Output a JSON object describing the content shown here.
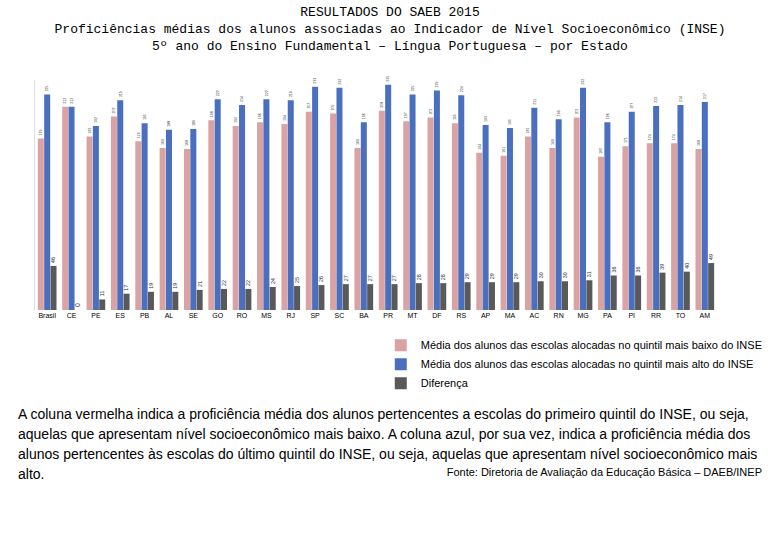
{
  "chart_data": {
    "type": "bar",
    "title": "RESULTADOS DO SAEB 2015\nProficiências médias dos alunos associadas ao Indicador de Nível Socioeconômico (INSE)\n5º ano do Ensino Fundamental – Língua Portuguesa – por Estado",
    "categories": [
      "Brasil",
      "CE",
      "PE",
      "ES",
      "PB",
      "AL",
      "SE",
      "GO",
      "RO",
      "MS",
      "RJ",
      "SP",
      "SC",
      "BA",
      "PR",
      "MT",
      "DF",
      "RS",
      "AP",
      "MA",
      "AC",
      "RN",
      "MG",
      "PA",
      "PI",
      "RR",
      "TO",
      "AM"
    ],
    "series": [
      {
        "name": "Média dos alunos das escolas alocadas no quintil mais baixo do INSE",
        "color": "#d9a3a3",
        "values": [
          179,
          212,
          181,
          202,
          176,
          169,
          168,
          198,
          192,
          196,
          194,
          207,
          205,
          169,
          208,
          197,
          201,
          195,
          164,
          161,
          181,
          169,
          201,
          160,
          171,
          174,
          174,
          168
        ]
      },
      {
        "name": "Média dos alunos das escolas alocadas no quintil mais alto do INSE",
        "color": "#4a6fbf",
        "values": [
          225,
          212,
          192,
          219,
          195,
          188,
          189,
          220,
          214,
          220,
          219,
          233,
          232,
          196,
          235,
          225,
          229,
          224,
          193,
          190,
          211,
          199,
          232,
          196,
          207,
          213,
          214,
          217
        ]
      },
      {
        "name": "Diferença",
        "color": "#595959",
        "values": [
          46,
          0,
          11,
          17,
          19,
          19,
          21,
          22,
          22,
          24,
          25,
          26,
          27,
          27,
          27,
          28,
          28,
          29,
          29,
          29,
          30,
          30,
          31,
          36,
          36,
          39,
          40,
          49
        ]
      }
    ],
    "ylim": [
      0,
      240
    ],
    "grid": false,
    "legend": "bottom right",
    "data_labels": true,
    "tick_labels": "x"
  },
  "caption": "A coluna vermelha indica a proficiência média dos alunos pertencentes a escolas do primeiro quintil do INSE, ou seja, aquelas que apresentam nível socioeconômico mais baixo. A coluna azul, por sua vez, indica a proficiência média dos alunos pertencentes às escolas do último quintil do INSE, ou seja, aquelas que apresentam nível socioeconômico mais alto.",
  "source": "Fonte: Diretoria de Avaliação da Educação Básica – DAEB/INEP"
}
